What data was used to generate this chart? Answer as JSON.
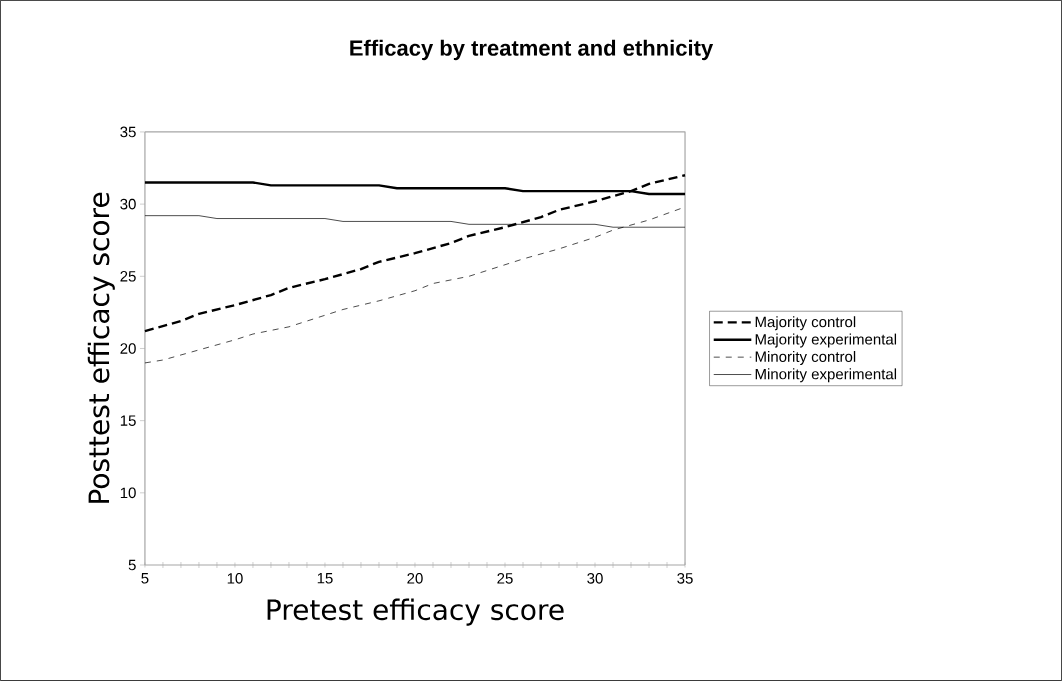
{
  "chart_data": {
    "type": "line",
    "title": "Efficacy by treatment and ethnicity",
    "xlabel": "Pretest efficacy score",
    "ylabel": "Posttest efficacy score",
    "xlim": [
      5,
      35
    ],
    "xticks": [
      5,
      10,
      15,
      20,
      25,
      30,
      35
    ],
    "ylim": [
      5,
      35
    ],
    "yticks": [
      5,
      10,
      15,
      20,
      25,
      30,
      35
    ],
    "legend": "right",
    "grid": false,
    "marker": "none",
    "series": [
      {
        "name": "Majority control",
        "color": "#000000",
        "line_style": "dashed",
        "x": [
          5,
          7,
          8,
          10,
          12,
          13,
          15,
          17,
          18,
          20,
          22,
          23,
          25,
          27,
          28,
          30,
          32,
          33,
          35
        ],
        "values": [
          21.2,
          21.9,
          22.4,
          23.0,
          23.7,
          24.2,
          24.8,
          25.5,
          26.0,
          26.6,
          27.3,
          27.8,
          28.4,
          29.1,
          29.6,
          30.2,
          30.9,
          31.4,
          32.0
        ]
      },
      {
        "name": "Majority experimental",
        "color": "#000000",
        "line_style": "solid",
        "x": [
          5,
          11,
          12,
          18,
          19,
          25,
          26,
          32,
          33,
          35
        ],
        "values": [
          31.5,
          31.5,
          31.3,
          31.3,
          31.1,
          31.1,
          30.9,
          30.9,
          30.7,
          30.7
        ]
      },
      {
        "name": "Minority control",
        "color": "#000000",
        "line_style": "dashed",
        "x": [
          5,
          6,
          8,
          10,
          11,
          13,
          15,
          16,
          18,
          20,
          21,
          23,
          25,
          26,
          28,
          30,
          31,
          33,
          35
        ],
        "values": [
          19.0,
          19.2,
          19.9,
          20.6,
          21.0,
          21.5,
          22.3,
          22.7,
          23.3,
          24.0,
          24.5,
          25.0,
          25.8,
          26.2,
          26.9,
          27.7,
          28.2,
          28.9,
          29.8
        ]
      },
      {
        "name": "Minority experimental",
        "color": "#000000",
        "line_style": "solid",
        "x": [
          5,
          8,
          9,
          15,
          16,
          22,
          23,
          30,
          31,
          35
        ],
        "values": [
          29.2,
          29.2,
          29.0,
          29.0,
          28.8,
          28.8,
          28.6,
          28.6,
          28.4,
          28.4
        ]
      }
    ]
  }
}
